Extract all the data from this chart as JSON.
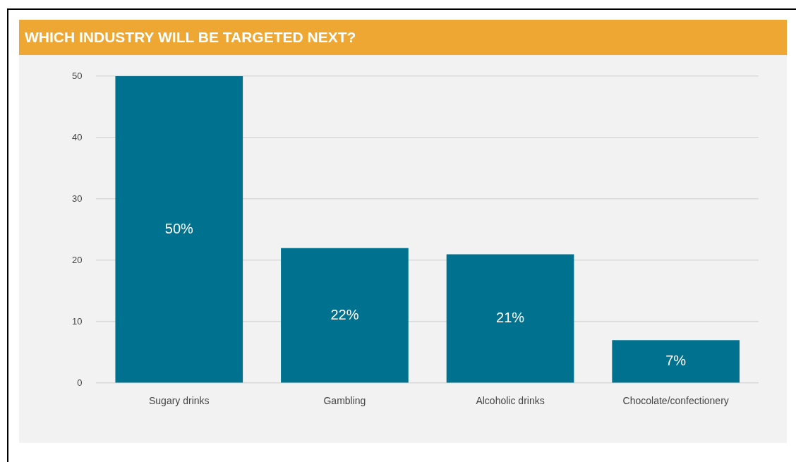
{
  "chart_data": {
    "type": "bar",
    "title": "WHICH INDUSTRY WILL BE TARGETED NEXT?",
    "categories": [
      "Sugary drinks",
      "Gambling",
      "Alcoholic drinks",
      "Chocolate/confectionery"
    ],
    "values": [
      50,
      22,
      21,
      7
    ],
    "color": "#00728f",
    "value_labels": [
      "50%",
      "22%",
      "21%",
      "7%"
    ],
    "ylim": [
      0,
      50
    ],
    "yticks": [
      0,
      10,
      20,
      30,
      40,
      50
    ],
    "grid": "y",
    "legend": false
  }
}
